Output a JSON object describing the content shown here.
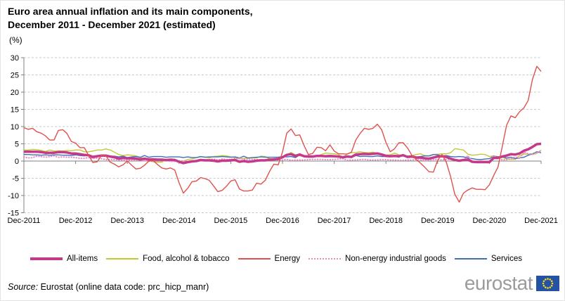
{
  "header": {
    "title_line1": "Euro area annual inflation and its main components,",
    "title_line2": "December 2011 - December 2021 (estimated)",
    "unit": "(%)"
  },
  "chart_data": {
    "type": "line",
    "title": "Euro area annual inflation and its main components, December 2011 - December 2021 (estimated)",
    "ylabel": "%",
    "xlabel": "",
    "ylim": [
      -15,
      30
    ],
    "y_ticks": [
      30,
      25,
      20,
      15,
      10,
      5,
      0,
      -5,
      -10,
      -15
    ],
    "x_tick_labels": [
      "Dec-2011",
      "Dec-2012",
      "Dec-2013",
      "Dec-2014",
      "Dec-2015",
      "Dec-2016",
      "Dec-2017",
      "Dec-2018",
      "Dec-2019",
      "Dec-2020",
      "Dec-2021"
    ],
    "n_points": 121,
    "grid": "dashed-horizontal",
    "legend_position": "bottom",
    "colors": {
      "gridline": "#c9c9c9",
      "axis": "#808080"
    },
    "series": [
      {
        "name": "All-items",
        "color": "#c5398b",
        "style": "solid",
        "width": 3.5,
        "legend_weight": 4,
        "values": [
          2.7,
          2.7,
          2.7,
          2.7,
          2.6,
          2.4,
          2.4,
          2.4,
          2.6,
          2.6,
          2.5,
          2.2,
          2.2,
          2.0,
          1.8,
          1.7,
          1.2,
          1.4,
          1.6,
          1.6,
          1.3,
          1.1,
          0.7,
          0.9,
          0.8,
          0.8,
          0.7,
          0.5,
          0.7,
          0.5,
          0.5,
          0.4,
          0.4,
          0.3,
          0.4,
          0.3,
          -0.2,
          -0.6,
          -0.3,
          -0.1,
          0.0,
          0.3,
          0.2,
          0.2,
          0.1,
          -0.1,
          0.1,
          0.1,
          0.2,
          0.3,
          -0.2,
          0.0,
          -0.2,
          -0.1,
          0.1,
          0.2,
          0.2,
          0.4,
          0.5,
          0.6,
          1.1,
          1.8,
          2.0,
          1.5,
          1.9,
          1.4,
          1.3,
          1.3,
          1.5,
          1.5,
          1.4,
          1.5,
          1.4,
          1.3,
          1.1,
          1.3,
          1.2,
          1.9,
          2.0,
          2.1,
          2.0,
          2.1,
          2.2,
          1.9,
          1.5,
          1.4,
          1.5,
          1.4,
          1.7,
          1.2,
          1.3,
          1.0,
          1.0,
          0.8,
          0.7,
          1.0,
          1.3,
          1.4,
          1.2,
          0.7,
          0.3,
          0.1,
          0.3,
          0.4,
          -0.2,
          -0.3,
          -0.3,
          -0.3,
          -0.3,
          0.9,
          0.9,
          1.3,
          1.6,
          2.0,
          1.9,
          2.2,
          3.0,
          3.4,
          4.1,
          4.9,
          5.0
        ]
      },
      {
        "name": "Food, alcohol & tobacco",
        "color": "#c2c935",
        "style": "solid",
        "width": 1.4,
        "legend_weight": 2,
        "values": [
          3.2,
          3.2,
          3.4,
          3.3,
          3.1,
          2.8,
          3.2,
          2.9,
          3.0,
          2.9,
          3.1,
          3.0,
          3.2,
          3.2,
          2.7,
          2.7,
          2.9,
          3.2,
          3.2,
          3.5,
          3.2,
          2.6,
          1.9,
          1.6,
          1.8,
          1.7,
          1.5,
          1.0,
          0.7,
          0.1,
          -0.2,
          -0.3,
          -0.3,
          0.3,
          0.5,
          0.5,
          0.0,
          -0.1,
          0.5,
          0.6,
          1.0,
          1.2,
          1.2,
          0.9,
          1.3,
          1.4,
          1.6,
          1.5,
          1.2,
          1.0,
          0.6,
          0.8,
          0.8,
          0.9,
          0.9,
          1.4,
          1.3,
          0.7,
          0.4,
          0.7,
          1.2,
          1.8,
          2.5,
          1.8,
          1.5,
          1.5,
          1.4,
          1.4,
          1.4,
          1.9,
          2.3,
          2.2,
          2.1,
          1.9,
          1.0,
          2.1,
          2.4,
          2.5,
          2.7,
          2.5,
          2.4,
          2.6,
          2.2,
          1.9,
          1.8,
          1.8,
          2.3,
          1.8,
          1.5,
          1.5,
          1.6,
          1.9,
          2.1,
          1.6,
          1.5,
          1.9,
          2.0,
          2.1,
          2.1,
          2.4,
          3.6,
          3.4,
          3.2,
          2.0,
          1.7,
          1.8,
          2.0,
          1.9,
          1.3,
          1.5,
          1.3,
          1.1,
          0.6,
          0.5,
          0.5,
          1.6,
          2.0,
          2.0,
          1.9,
          2.2,
          3.2
        ]
      },
      {
        "name": "Energy",
        "color": "#e0514d",
        "style": "solid",
        "width": 1.4,
        "legend_weight": 2,
        "values": [
          9.7,
          9.2,
          9.5,
          8.5,
          8.1,
          7.3,
          6.1,
          6.1,
          8.9,
          9.1,
          8.0,
          5.7,
          5.2,
          3.9,
          3.9,
          1.7,
          -0.4,
          -0.2,
          1.6,
          1.6,
          -0.3,
          -0.9,
          -1.7,
          -1.1,
          0.0,
          -1.2,
          -2.3,
          -2.1,
          -1.2,
          0.0,
          0.1,
          -1.0,
          -2.0,
          -2.3,
          -2.0,
          -2.6,
          -6.3,
          -9.3,
          -7.9,
          -6.0,
          -5.8,
          -4.8,
          -5.1,
          -5.6,
          -7.2,
          -8.9,
          -8.5,
          -7.3,
          -5.8,
          -5.4,
          -8.1,
          -8.7,
          -8.7,
          -8.4,
          -6.4,
          -6.7,
          -5.6,
          -3.0,
          -0.9,
          -1.1,
          2.6,
          8.1,
          9.3,
          7.4,
          7.6,
          4.5,
          1.9,
          2.2,
          4.0,
          3.9,
          3.0,
          4.7,
          2.9,
          2.1,
          2.1,
          2.0,
          2.6,
          6.1,
          8.0,
          9.5,
          9.2,
          9.5,
          10.7,
          9.1,
          5.4,
          2.7,
          3.6,
          5.3,
          5.3,
          3.8,
          1.7,
          0.5,
          -0.6,
          -1.8,
          -3.1,
          -3.2,
          0.2,
          1.9,
          -0.3,
          -4.5,
          -9.7,
          -11.9,
          -9.3,
          -8.4,
          -7.8,
          -8.2,
          -8.2,
          -8.3,
          -6.9,
          -4.2,
          -1.7,
          4.3,
          10.4,
          13.1,
          12.6,
          14.3,
          15.4,
          17.6,
          23.7,
          27.5,
          26.0
        ]
      },
      {
        "name": "Non-energy industrial goods",
        "color": "#e78bc4",
        "style": "dotted",
        "width": 2,
        "legend_weight": 2,
        "values": [
          1.2,
          0.9,
          1.0,
          1.4,
          1.3,
          1.1,
          1.3,
          1.5,
          1.1,
          1.2,
          1.1,
          1.1,
          1.0,
          0.8,
          0.8,
          1.0,
          0.8,
          0.8,
          0.7,
          0.4,
          0.4,
          0.4,
          0.3,
          0.2,
          0.3,
          0.2,
          0.4,
          0.2,
          0.1,
          0.0,
          -0.1,
          0.0,
          0.3,
          0.2,
          -0.1,
          -0.1,
          0.0,
          0.1,
          -0.1,
          0.1,
          0.1,
          0.2,
          0.4,
          0.4,
          0.6,
          0.3,
          0.6,
          0.5,
          0.5,
          0.7,
          0.8,
          0.5,
          0.5,
          0.5,
          0.4,
          0.4,
          0.3,
          0.3,
          0.3,
          0.3,
          0.3,
          0.5,
          0.2,
          0.3,
          0.3,
          0.3,
          0.4,
          0.5,
          0.5,
          0.5,
          0.4,
          0.4,
          0.5,
          0.6,
          0.7,
          0.2,
          0.3,
          0.3,
          0.4,
          0.5,
          0.3,
          0.3,
          0.3,
          0.4,
          0.4,
          0.3,
          0.3,
          0.2,
          0.2,
          0.3,
          0.3,
          0.4,
          0.3,
          0.2,
          0.3,
          0.4,
          0.5,
          0.3,
          0.5,
          0.5,
          0.3,
          0.2,
          0.2,
          1.6,
          -0.1,
          -0.3,
          -0.1,
          -0.3,
          -0.5,
          1.5,
          1.0,
          0.3,
          0.4,
          0.7,
          1.2,
          0.7,
          2.6,
          2.1,
          2.0,
          2.4,
          2.9
        ]
      },
      {
        "name": "Services",
        "color": "#3f6eb5",
        "style": "solid",
        "width": 1.4,
        "legend_weight": 2,
        "values": [
          1.9,
          1.9,
          1.8,
          1.8,
          1.7,
          1.8,
          1.7,
          1.8,
          1.8,
          1.7,
          1.7,
          1.6,
          1.8,
          1.6,
          1.5,
          1.8,
          1.1,
          1.5,
          1.4,
          1.4,
          1.4,
          1.4,
          1.2,
          1.4,
          1.0,
          1.2,
          1.3,
          1.1,
          1.6,
          1.1,
          1.3,
          1.3,
          1.3,
          1.1,
          1.2,
          1.2,
          1.2,
          1.0,
          1.2,
          1.0,
          1.0,
          1.3,
          1.1,
          1.2,
          1.2,
          1.2,
          1.3,
          1.2,
          1.1,
          1.2,
          0.9,
          1.4,
          0.9,
          1.0,
          1.1,
          1.2,
          1.1,
          1.1,
          1.1,
          1.1,
          1.3,
          1.2,
          1.3,
          1.0,
          1.8,
          1.3,
          1.6,
          1.5,
          1.6,
          1.5,
          1.2,
          1.2,
          1.2,
          1.2,
          1.3,
          1.5,
          1.0,
          1.6,
          1.3,
          1.4,
          1.3,
          1.3,
          1.5,
          1.3,
          1.3,
          1.6,
          1.4,
          1.1,
          1.9,
          1.0,
          1.6,
          1.2,
          1.3,
          1.5,
          1.5,
          1.9,
          1.8,
          1.5,
          1.6,
          1.3,
          1.2,
          1.3,
          1.2,
          0.9,
          0.7,
          0.5,
          0.4,
          0.6,
          0.7,
          1.4,
          1.2,
          1.3,
          0.9,
          1.1,
          0.7,
          0.9,
          1.1,
          1.7,
          2.1,
          2.7,
          2.4
        ]
      }
    ]
  },
  "footer": {
    "source_prefix": "Source:",
    "source_rest": " Eurostat (online data code: prc_hicp_manr)",
    "logo_text": "eurostat"
  }
}
